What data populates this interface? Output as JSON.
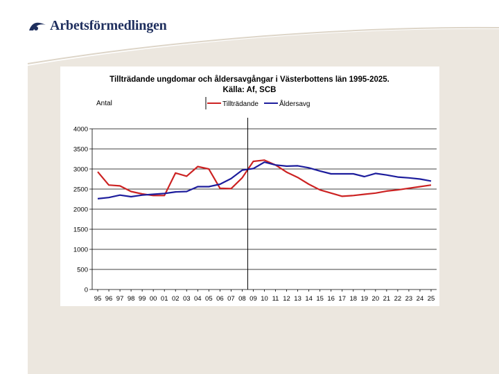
{
  "logo": {
    "text": "Arbetsförmedlingen",
    "icon": "arbetsformedlingen-swoosh-icon"
  },
  "colors": {
    "tilltradande": "#cc2222",
    "aldersavg": "#1c1c9c",
    "background_wave": "#e8e2d8",
    "logo": "#1f2f5e"
  },
  "chart_data": {
    "type": "line",
    "title_line1": "Tillträdande ungdomar och åldersavgångar i Västerbottens län 1995-2025.",
    "title_line2": "Källa: Af, SCB",
    "ylabel": "Antal",
    "xlabel": "",
    "categories": [
      "95",
      "96",
      "97",
      "98",
      "99",
      "00",
      "01",
      "02",
      "03",
      "04",
      "05",
      "06",
      "07",
      "08",
      "09",
      "10",
      "11",
      "12",
      "13",
      "14",
      "15",
      "16",
      "17",
      "18",
      "19",
      "20",
      "21",
      "22",
      "23",
      "24",
      "25"
    ],
    "ylim": [
      0,
      4000
    ],
    "yticks": [
      0,
      500,
      1000,
      1500,
      2000,
      2500,
      3000,
      3500,
      4000
    ],
    "grid": true,
    "divider_after": "08",
    "legend_position": "top",
    "series": [
      {
        "name": "Tillträdande",
        "color": "#cc2222",
        "values": [
          2930,
          2600,
          2580,
          2440,
          2380,
          2340,
          2340,
          2900,
          2820,
          3060,
          3000,
          2520,
          2510,
          2780,
          3190,
          3220,
          3100,
          2920,
          2790,
          2620,
          2480,
          2400,
          2320,
          2340,
          2370,
          2400,
          2450,
          2480,
          2520,
          2560,
          2600
        ]
      },
      {
        "name": "Åldersavg",
        "color": "#1c1c9c",
        "values": [
          2260,
          2290,
          2350,
          2310,
          2350,
          2370,
          2390,
          2430,
          2440,
          2560,
          2560,
          2620,
          2760,
          2970,
          3010,
          3170,
          3100,
          3070,
          3080,
          3030,
          2950,
          2880,
          2880,
          2880,
          2810,
          2890,
          2850,
          2800,
          2780,
          2750,
          2700
        ]
      }
    ]
  }
}
